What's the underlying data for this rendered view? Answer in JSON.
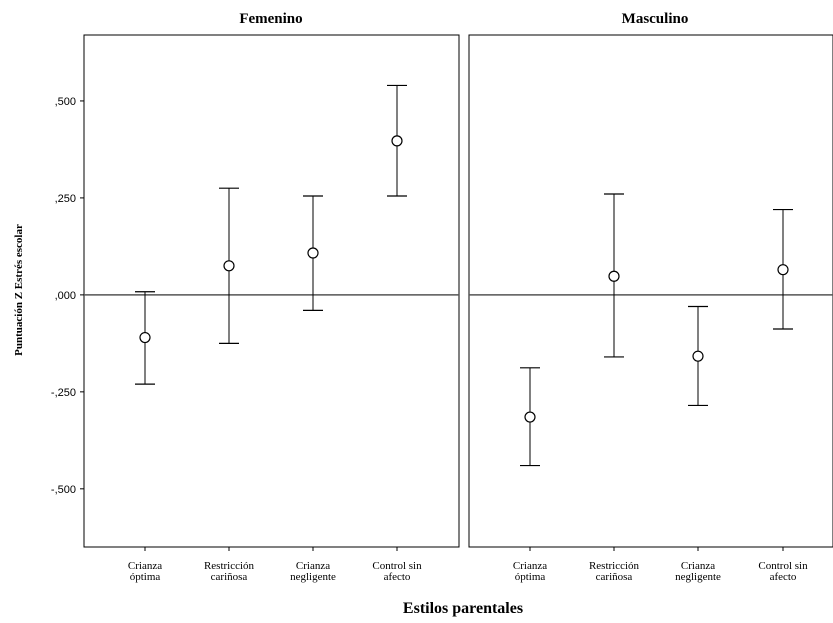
{
  "chart_data": {
    "type": "errorbar",
    "xlabel": "Estilos parentales",
    "ylabel": "Puntuación Z Estrés escolar",
    "ylim": [
      -0.65,
      0.67
    ],
    "yticks": [
      0.5,
      0.25,
      0.0,
      -0.25,
      -0.5
    ],
    "ytick_labels": [
      ",500",
      ",250",
      ",000",
      "-,250",
      "-,500"
    ],
    "reference_line": 0.0,
    "categories": [
      [
        "Crianza",
        "óptima"
      ],
      [
        "Restricción",
        "cariñosa"
      ],
      [
        "Crianza",
        "negligente"
      ],
      [
        "Control sin",
        "afecto"
      ]
    ],
    "panels": [
      {
        "title": "Femenino",
        "mean": [
          -0.11,
          0.075,
          0.108,
          0.397
        ],
        "lower": [
          -0.23,
          -0.125,
          -0.04,
          0.255
        ],
        "upper": [
          0.008,
          0.275,
          0.255,
          0.54
        ]
      },
      {
        "title": "Masculino",
        "mean": [
          -0.315,
          0.048,
          -0.158,
          0.065
        ],
        "lower": [
          -0.44,
          -0.16,
          -0.285,
          -0.088
        ],
        "upper": [
          -0.188,
          0.26,
          -0.03,
          0.22
        ]
      }
    ]
  }
}
